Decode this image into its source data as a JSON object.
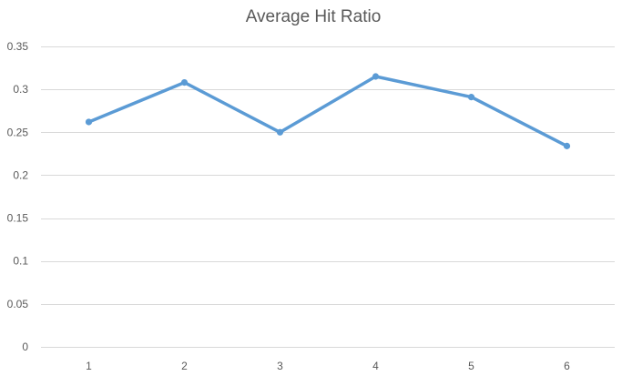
{
  "chart_data": {
    "type": "line",
    "title": "Average Hit Ratio",
    "xlabel": "",
    "ylabel": "",
    "categories": [
      "1",
      "2",
      "3",
      "4",
      "5",
      "6"
    ],
    "x": [
      1,
      2,
      3,
      4,
      5,
      6
    ],
    "series": [
      {
        "values": [
          0.262,
          0.308,
          0.25,
          0.315,
          0.291,
          0.234
        ],
        "color": "#5b9bd5"
      }
    ],
    "ylim": [
      0,
      0.35
    ],
    "yticks": [
      0,
      0.05,
      0.1,
      0.15,
      0.2,
      0.25,
      0.3,
      0.35
    ],
    "ytick_labels": [
      "0",
      "0.05",
      "0.1",
      "0.15",
      "0.2",
      "0.25",
      "0.3",
      "0.35"
    ],
    "grid": true,
    "legend": "none",
    "markers": true
  }
}
